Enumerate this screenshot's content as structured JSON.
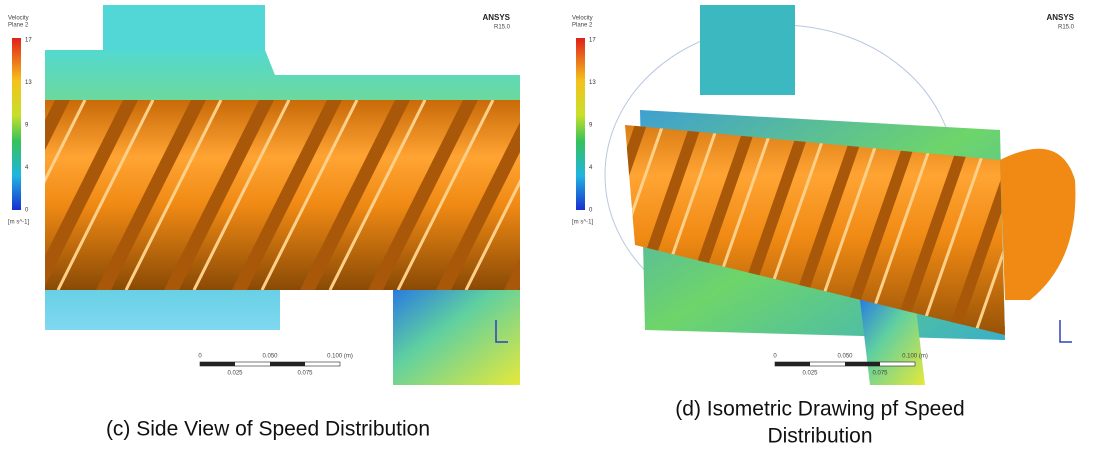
{
  "panels": [
    {
      "legend": {
        "title": "Velocity",
        "subtitle": "Plane 2",
        "ticks": [
          "17",
          "13",
          "9",
          "4",
          "0"
        ],
        "unit": "[m s^-1]"
      },
      "logo": "ANSYS",
      "version": "R15.0",
      "scale_bar": [
        "0",
        "0.050",
        "0.100 (m)",
        "0.025",
        "0.075"
      ],
      "caption": [
        "(c) Side View of Speed Distribution"
      ]
    },
    {
      "legend": {
        "title": "Velocity",
        "subtitle": "Plane 2",
        "ticks": [
          "17",
          "13",
          "9",
          "4",
          "0"
        ],
        "unit": "[m s^-1]"
      },
      "logo": "ANSYS",
      "version": "R15.0",
      "scale_bar": [
        "0",
        "0.050",
        "0.100 (m)",
        "0.025",
        "0.075"
      ],
      "caption": [
        "(d) Isometric Drawing pf Speed",
        "Distribution"
      ]
    }
  ]
}
